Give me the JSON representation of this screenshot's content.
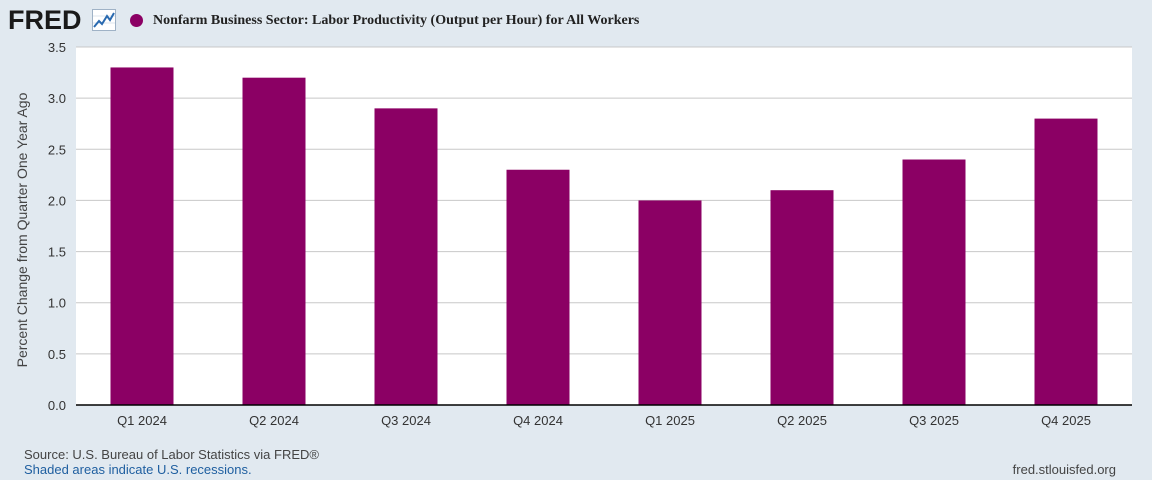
{
  "header": {
    "logo_text": "FRED",
    "series_color": "#8b0064"
  },
  "chart_data": {
    "type": "bar",
    "title": "Nonfarm Business Sector: Labor Productivity (Output per Hour) for All Workers",
    "xlabel": "",
    "ylabel": "Percent Change from Quarter One Year Ago",
    "categories": [
      "Q1 2024",
      "Q2 2024",
      "Q3 2024",
      "Q4 2024",
      "Q1 2025",
      "Q2 2025",
      "Q3 2025",
      "Q4 2025"
    ],
    "series": [
      {
        "name": "Nonfarm Business Sector: Labor Productivity (Output per Hour) for All Workers",
        "values": [
          3.3,
          3.2,
          2.9,
          2.3,
          2.0,
          2.1,
          2.4,
          2.8
        ],
        "color": "#8b0064"
      }
    ],
    "ylim": [
      0,
      3.5
    ],
    "yticks": [
      "0.0",
      "0.5",
      "1.0",
      "1.5",
      "2.0",
      "2.5",
      "3.0",
      "3.5"
    ],
    "grid": true,
    "legend": "top-left"
  },
  "footer": {
    "source": "Source: U.S. Bureau of Labor Statistics via FRED®",
    "recession_note": "Shaded areas indicate U.S. recessions.",
    "url": "fred.stlouisfed.org"
  }
}
